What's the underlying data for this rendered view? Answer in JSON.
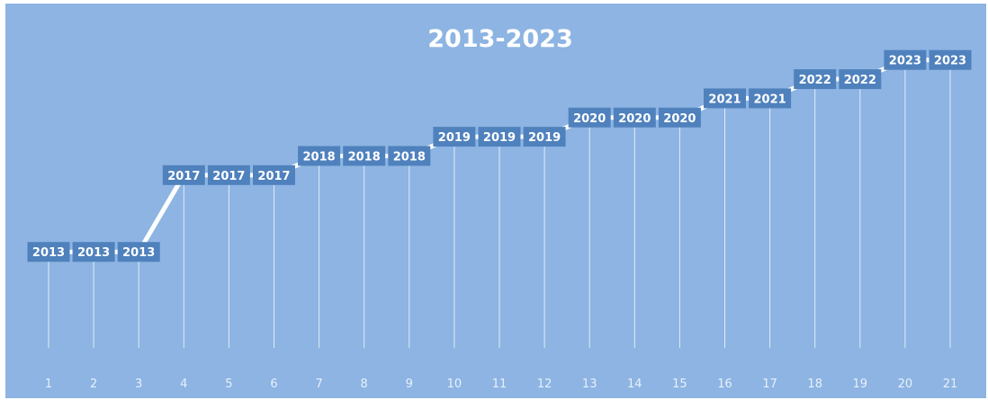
{
  "chart_data": {
    "type": "line",
    "title": "2013-2023",
    "x": [
      "1",
      "2",
      "3",
      "4",
      "5",
      "6",
      "7",
      "8",
      "9",
      "10",
      "11",
      "12",
      "13",
      "14",
      "15",
      "16",
      "17",
      "18",
      "19",
      "20",
      "21"
    ],
    "series": [
      {
        "values": [
          2013,
          2013,
          2013,
          2017,
          2017,
          2017,
          2018,
          2018,
          2018,
          2019,
          2019,
          2019,
          2020,
          2020,
          2020,
          2021,
          2021,
          2022,
          2022,
          2023,
          2023
        ],
        "labels": [
          "2013",
          "2013",
          "2013",
          "2017",
          "2017",
          "2017",
          "2018",
          "2018",
          "2018",
          "2019",
          "2019",
          "2019",
          "2020",
          "2020",
          "2020",
          "2021",
          "2021",
          "2022",
          "2022",
          "2023",
          "2023"
        ]
      }
    ],
    "ylim": [
      2008,
      2025
    ],
    "grid": false,
    "legend": "none",
    "drop_lines": true,
    "colors": {
      "background": "#8db4e2",
      "line": "#ffffff",
      "label_box": "#4f81bd",
      "text": "#ffffff"
    }
  }
}
